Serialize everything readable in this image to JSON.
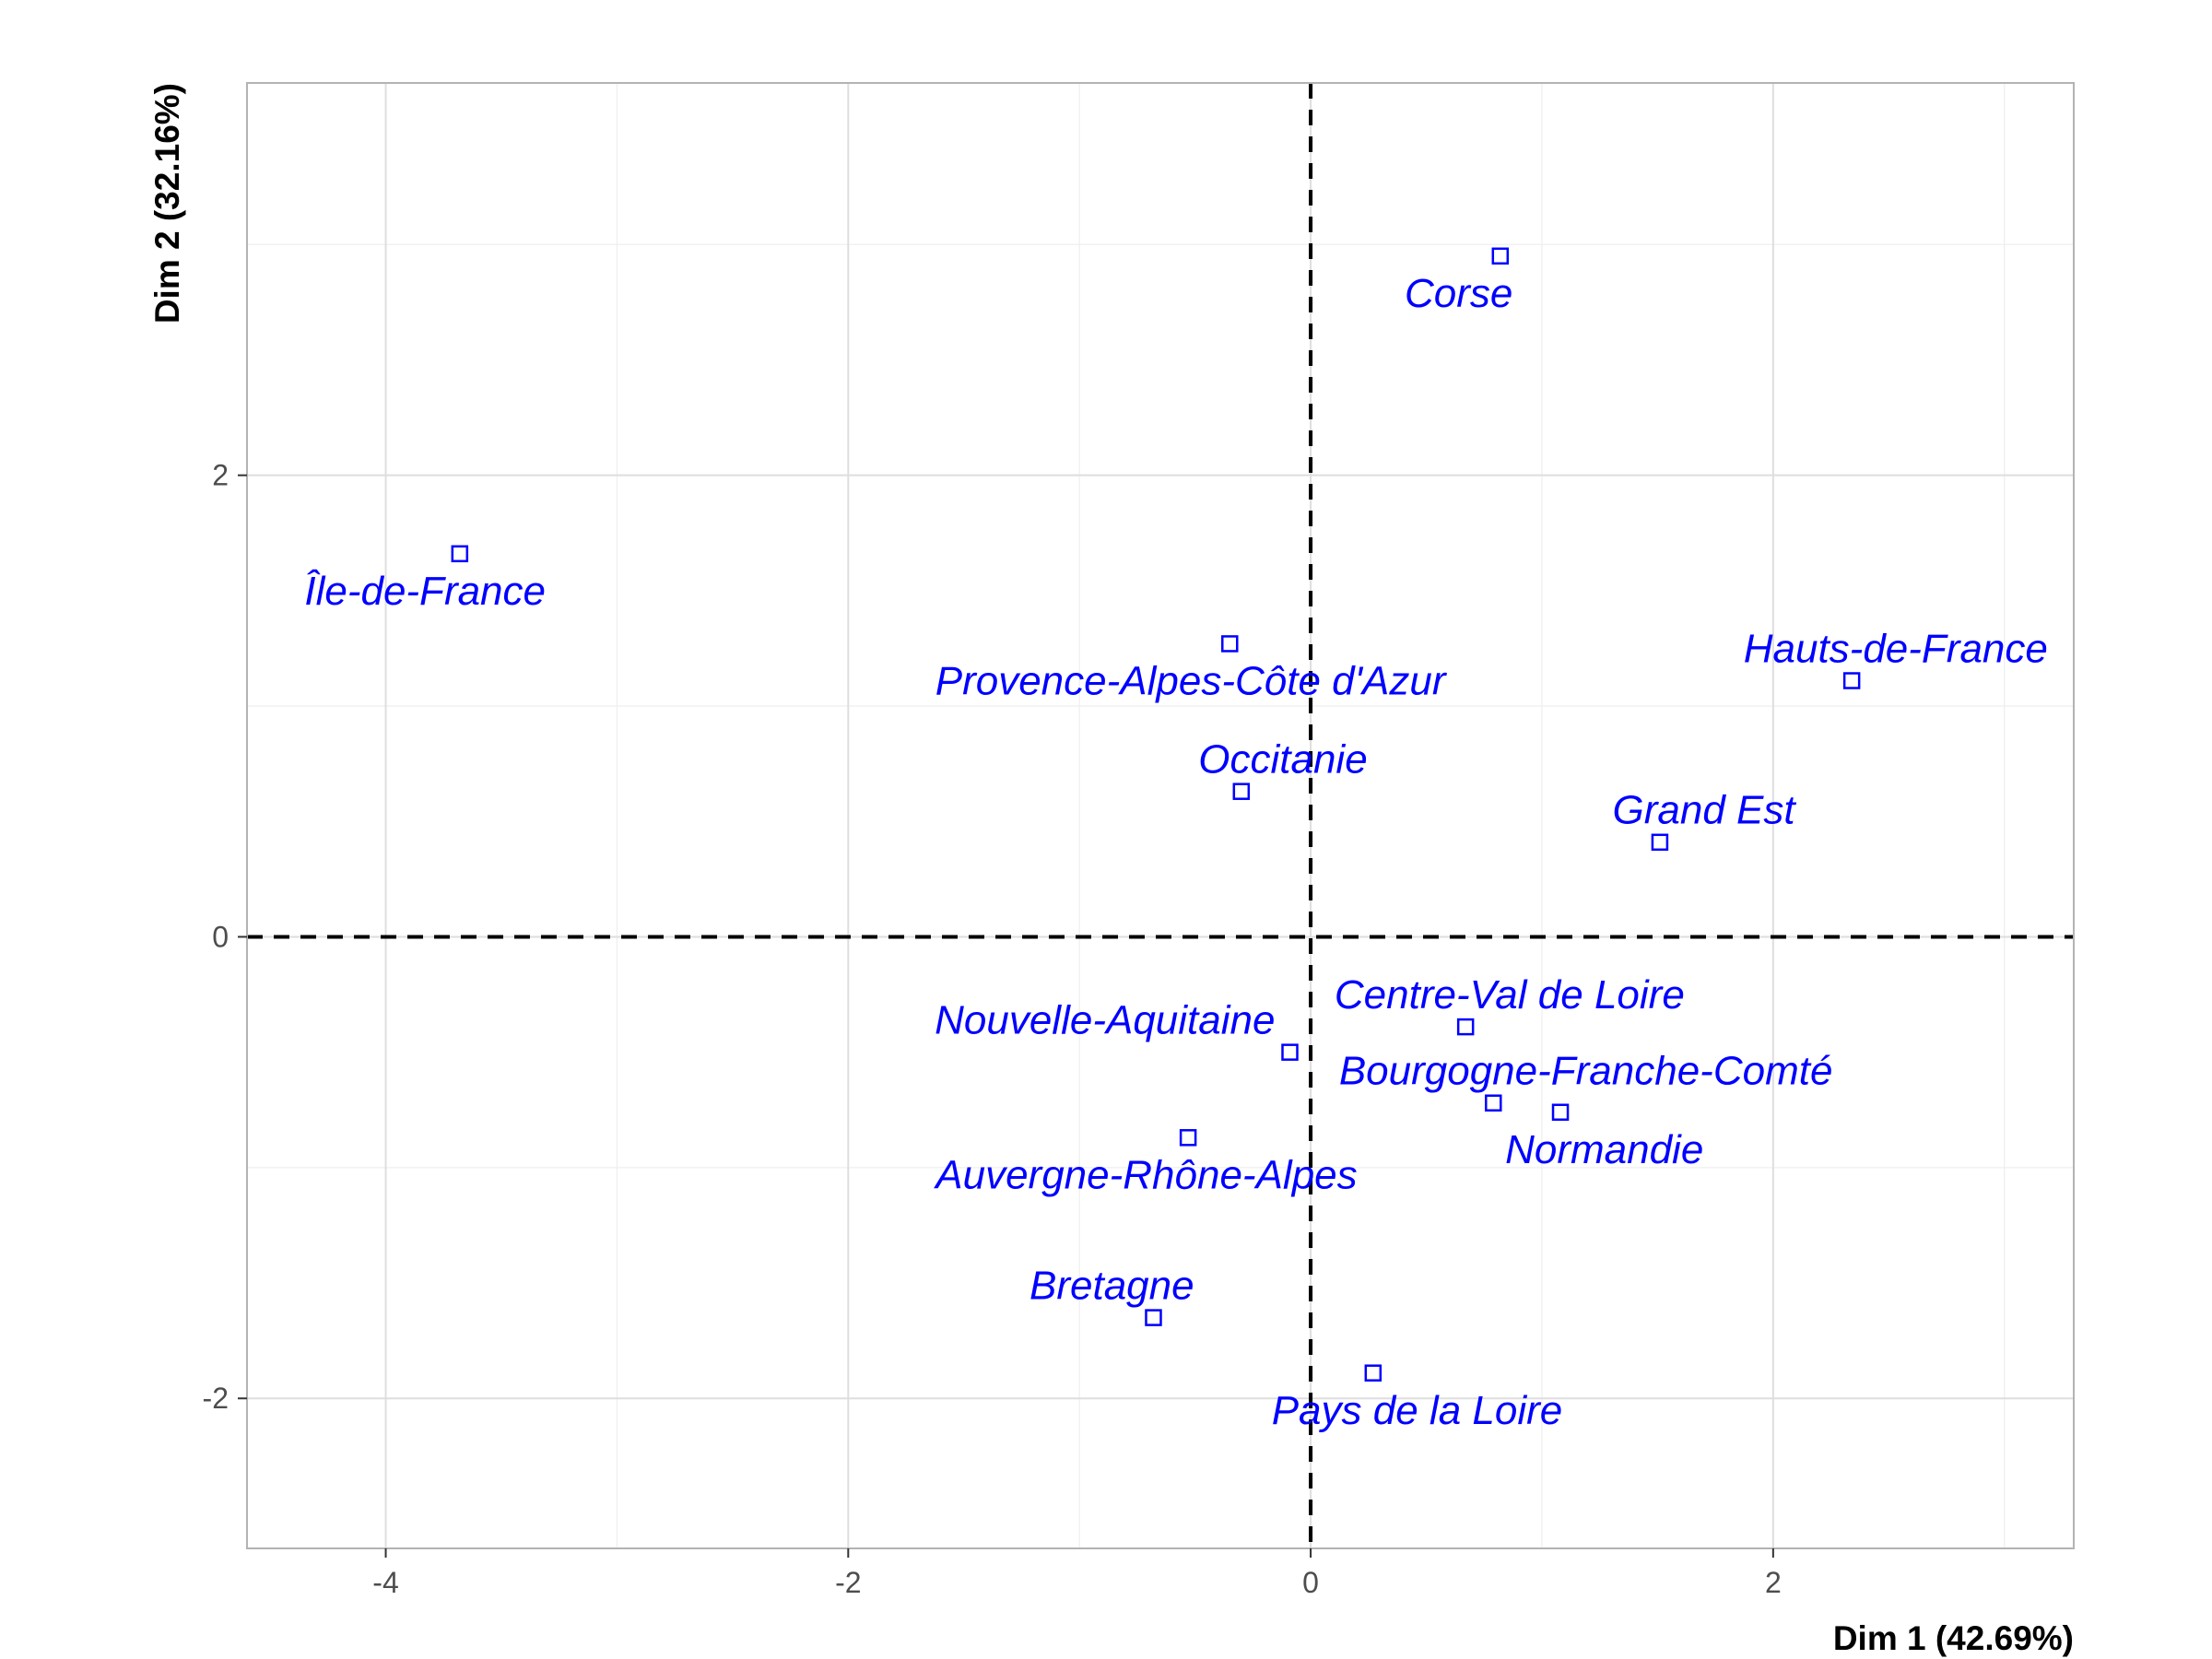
{
  "chart_data": {
    "type": "scatter",
    "title": "",
    "xlabel": "Dim 1 (42.69%)",
    "ylabel": "Dim 2 (32.16%)",
    "xlim": [
      -4.6,
      3.3
    ],
    "ylim": [
      -2.65,
      3.7
    ],
    "x_ticks": [
      -4,
      -2,
      0,
      2
    ],
    "y_ticks": [
      -2,
      0,
      2
    ],
    "grid": true,
    "reference_lines": {
      "x": 0,
      "y": 0,
      "style": "dashed"
    },
    "point_color": "#0000ff",
    "marker": "hollow-square",
    "points": [
      {
        "label": "Île-de-France",
        "x": -3.68,
        "y": 1.66,
        "label_dx": -0.15,
        "label_dy": -0.16
      },
      {
        "label": "Corse",
        "x": 0.82,
        "y": 2.95,
        "label_dx": -0.18,
        "label_dy": -0.16
      },
      {
        "label": "Provence-Alpes-Côte d'Azur",
        "x": -0.35,
        "y": 1.27,
        "label_dx": -0.17,
        "label_dy": -0.16
      },
      {
        "label": "Hauts-de-France",
        "x": 2.34,
        "y": 1.11,
        "label_dx": 0.19,
        "label_dy": 0.14
      },
      {
        "label": "Occitanie",
        "x": -0.3,
        "y": 0.63,
        "label_dx": 0.18,
        "label_dy": 0.14
      },
      {
        "label": "Grand Est",
        "x": 1.51,
        "y": 0.41,
        "label_dx": 0.19,
        "label_dy": 0.14
      },
      {
        "label": "Centre-Val de Loire",
        "x": 0.67,
        "y": -0.39,
        "label_dx": 0.19,
        "label_dy": 0.14
      },
      {
        "label": "Nouvelle-Aquitaine",
        "x": -0.09,
        "y": -0.5,
        "label_dx": -0.8,
        "label_dy": 0.14
      },
      {
        "label": "Bourgogne-Franche-Comté",
        "x": 0.79,
        "y": -0.72,
        "label_dx": 0.4,
        "label_dy": 0.14
      },
      {
        "label": "Normandie",
        "x": 1.08,
        "y": -0.76,
        "label_dx": 0.19,
        "label_dy": -0.16
      },
      {
        "label": "Auvergne-Rhône-Alpes",
        "x": -0.53,
        "y": -0.87,
        "label_dx": -0.18,
        "label_dy": -0.16
      },
      {
        "label": "Bretagne",
        "x": -0.68,
        "y": -1.65,
        "label_dx": -0.18,
        "label_dy": 0.14
      },
      {
        "label": "Pays de la Loire",
        "x": 0.27,
        "y": -1.89,
        "label_dx": 0.19,
        "label_dy": -0.16
      }
    ]
  }
}
